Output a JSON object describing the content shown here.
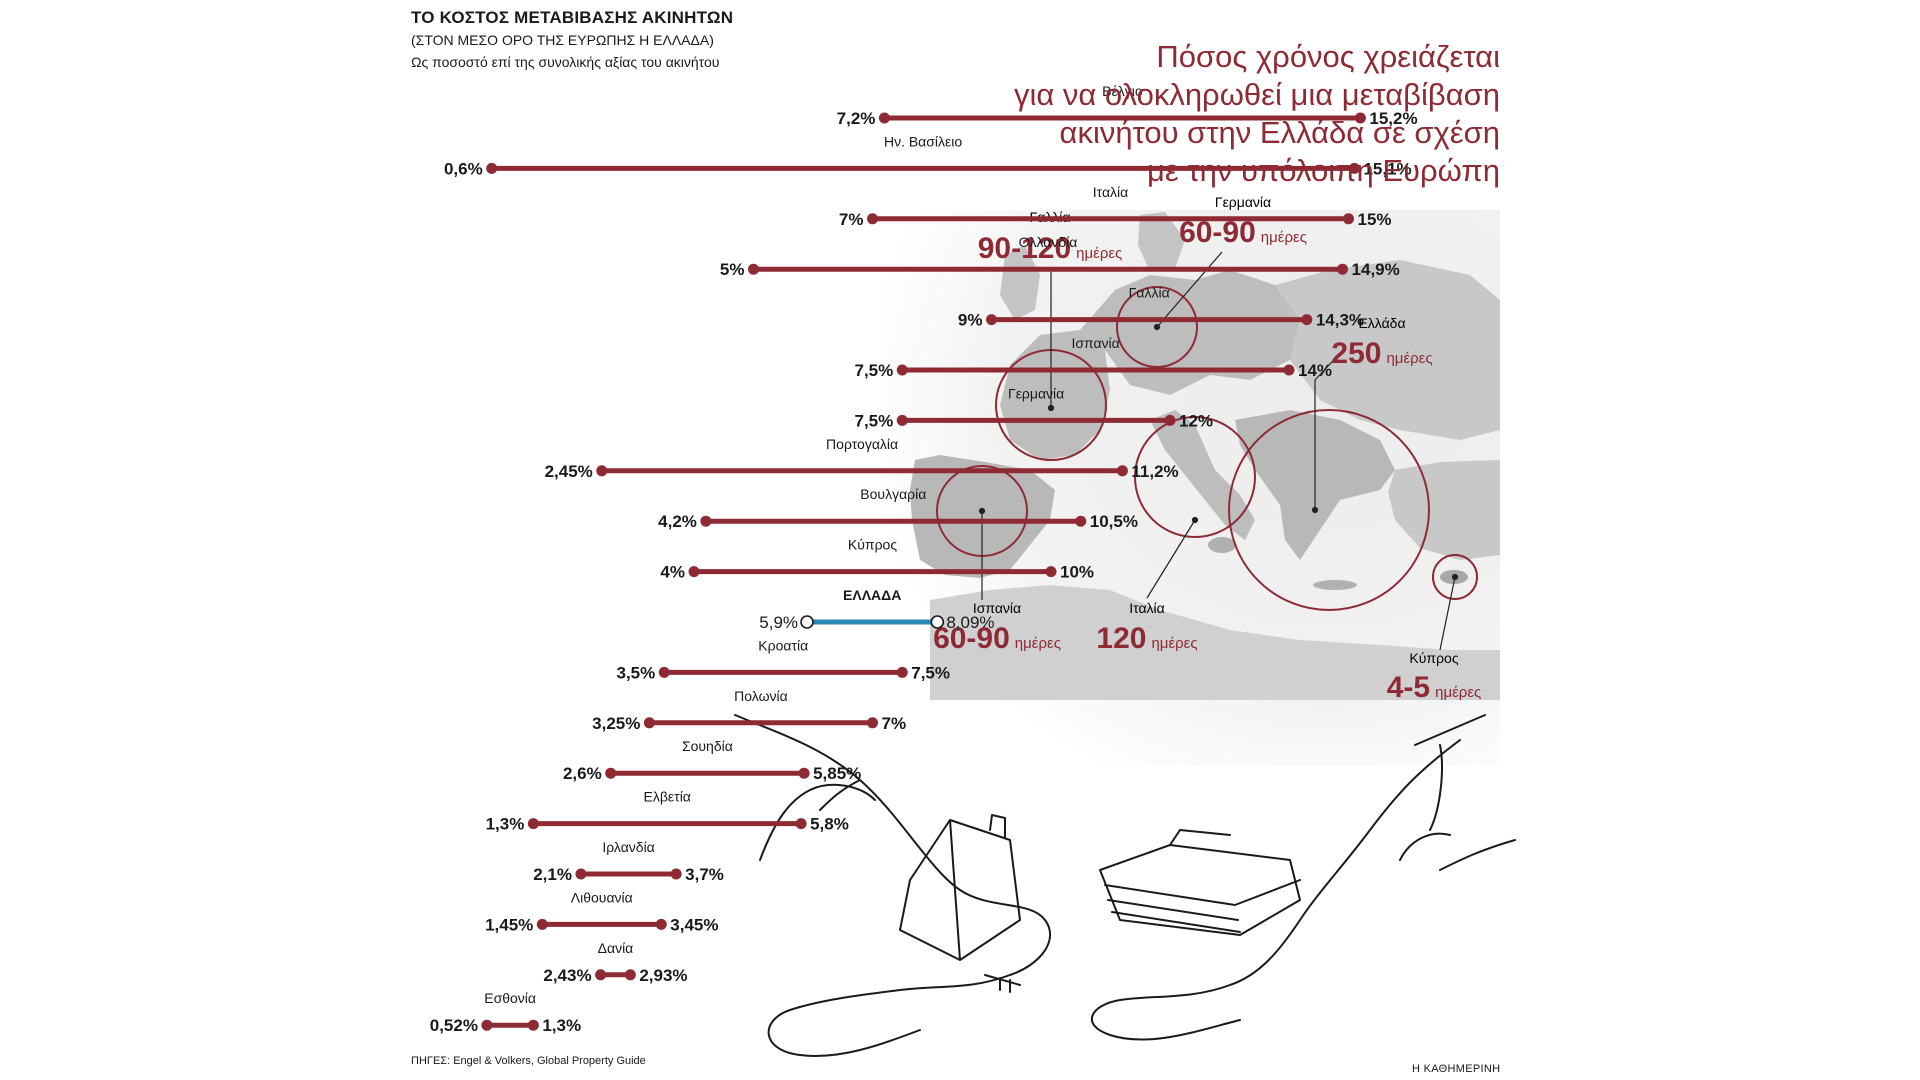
{
  "header": {
    "title": "ΤΟ ΚΟΣΤΟΣ ΜΕΤΑΒΙΒΑΣΗΣ ΑΚΙΝΗΤΩΝ",
    "subtitle": "(ΣΤΟΝ ΜΕΣΟ ΟΡΟ ΤΗΣ ΕΥΡΩΠΗΣ Η ΕΛΛΑΔΑ)",
    "note": "Ως ποσοστό επί της συνολικής αξίας του ακινήτου"
  },
  "right_title": [
    "Πόσος χρόνος χρειάζεται",
    "για να ολοκληρωθεί μια μεταβίβαση",
    "ακινήτου στην Ελλάδα σε σχέση",
    "με την υπόλοιπη Ευρώπη"
  ],
  "colors": {
    "accent": "#8e2a33",
    "highlight": "#2b86b5",
    "map": "#bdbdbd"
  },
  "chart_data": {
    "type": "dumbbell",
    "unit": "%",
    "xlim": [
      0,
      16
    ],
    "rows": [
      {
        "country": "Βέλγιο",
        "min": 7.2,
        "max": 15.2,
        "min_label": "7,2%",
        "max_label": "15,2%"
      },
      {
        "country": "Ην. Βασίλειο",
        "min": 0.6,
        "max": 15.1,
        "min_label": "0,6%",
        "max_label": "15,1%"
      },
      {
        "country": "Ιταλία",
        "min": 7,
        "max": 15,
        "min_label": "7%",
        "max_label": "15%"
      },
      {
        "country": "Ολλανδία",
        "min": 5,
        "max": 14.9,
        "min_label": "5%",
        "max_label": "14,9%"
      },
      {
        "country": "Γαλλία",
        "min": 9,
        "max": 14.3,
        "min_label": "9%",
        "max_label": "14,3%"
      },
      {
        "country": "Ισπανία",
        "min": 7.5,
        "max": 14,
        "min_label": "7,5%",
        "max_label": "14%"
      },
      {
        "country": "Γερμανία",
        "min": 7.5,
        "max": 12,
        "min_label": "7,5%",
        "max_label": "12%"
      },
      {
        "country": "Πορτογαλία",
        "min": 2.45,
        "max": 11.2,
        "min_label": "2,45%",
        "max_label": "11,2%"
      },
      {
        "country": "Βουλγαρία",
        "min": 4.2,
        "max": 10.5,
        "min_label": "4,2%",
        "max_label": "10,5%"
      },
      {
        "country": "Κύπρος",
        "min": 4,
        "max": 10,
        "min_label": "4%",
        "max_label": "10%"
      },
      {
        "country": "ΕΛΛΑΔΑ",
        "min": 5.9,
        "max": 8.09,
        "min_label": "5,9%",
        "max_label": "8,09%",
        "highlight": true
      },
      {
        "country": "Κροατία",
        "min": 3.5,
        "max": 7.5,
        "min_label": "3,5%",
        "max_label": "7,5%"
      },
      {
        "country": "Πολωνία",
        "min": 3.25,
        "max": 7,
        "min_label": "3,25%",
        "max_label": "7%"
      },
      {
        "country": "Σουηδία",
        "min": 2.6,
        "max": 5.85,
        "min_label": "2,6%",
        "max_label": "5,85%"
      },
      {
        "country": "Ελβετία",
        "min": 1.3,
        "max": 5.8,
        "min_label": "1,3%",
        "max_label": "5,8%"
      },
      {
        "country": "Ιρλανδία",
        "min": 2.1,
        "max": 3.7,
        "min_label": "2,1%",
        "max_label": "3,7%"
      },
      {
        "country": "Λιθουανία",
        "min": 1.45,
        "max": 3.45,
        "min_label": "1,45%",
        "max_label": "3,45%"
      },
      {
        "country": "Δανία",
        "min": 2.43,
        "max": 2.93,
        "min_label": "2,43%",
        "max_label": "2,93%"
      },
      {
        "country": "Εσθονία",
        "min": 0.52,
        "max": 1.3,
        "min_label": "0,52%",
        "max_label": "1,3%"
      }
    ]
  },
  "map": {
    "unit_label": "ημέρες",
    "callouts": [
      {
        "country": "Γαλλία",
        "value": "90-120"
      },
      {
        "country": "Γερμανία",
        "value": "60-90"
      },
      {
        "country": "Ελλάδα",
        "value": "250"
      },
      {
        "country": "Ισπανία",
        "value": "60-90"
      },
      {
        "country": "Ιταλία",
        "value": "120"
      },
      {
        "country": "Κύπρος",
        "value": "4-5"
      }
    ]
  },
  "footer": {
    "sources": "ΠΗΓΕΣ: Engel & Volkers, Global Property Guide",
    "brand": "Η ΚΑΘΗΜΕΡΙΝΗ"
  }
}
